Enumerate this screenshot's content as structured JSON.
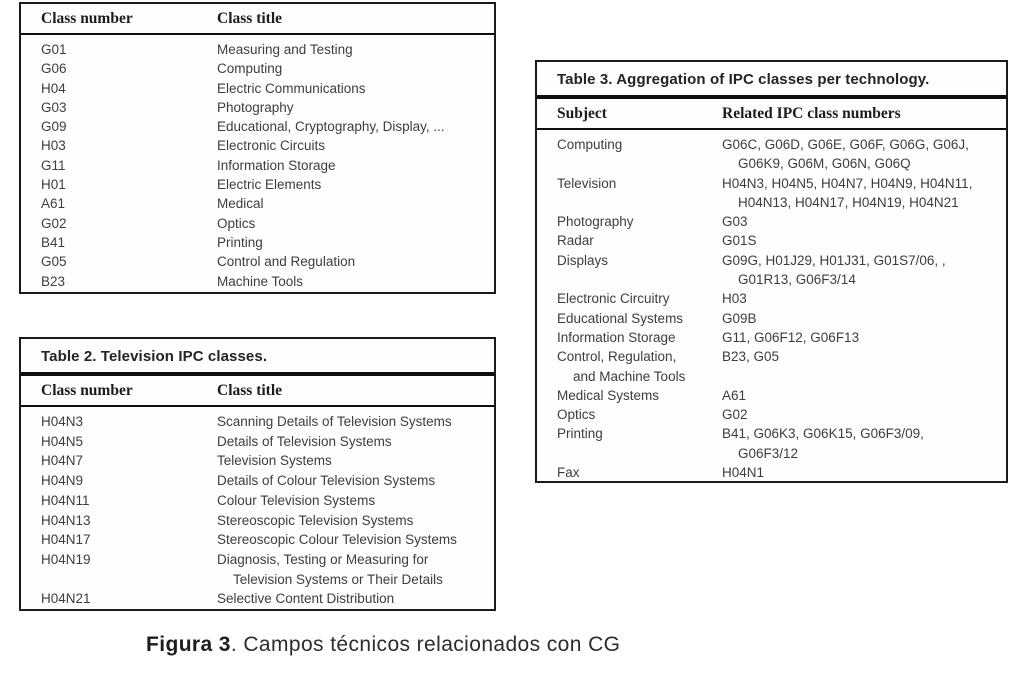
{
  "table1": {
    "headers": [
      "Class number",
      "Class title"
    ],
    "rows": [
      {
        "c1": [
          "G01"
        ],
        "c2": [
          "Measuring and Testing"
        ]
      },
      {
        "c1": [
          "G06"
        ],
        "c2": [
          "Computing"
        ]
      },
      {
        "c1": [
          "H04"
        ],
        "c2": [
          "Electric Communications"
        ]
      },
      {
        "c1": [
          "G03"
        ],
        "c2": [
          "Photography"
        ]
      },
      {
        "c1": [
          "G09"
        ],
        "c2": [
          "Educational, Cryptography, Display, ..."
        ]
      },
      {
        "c1": [
          "H03"
        ],
        "c2": [
          "Electronic Circuits"
        ]
      },
      {
        "c1": [
          "G11"
        ],
        "c2": [
          "Information Storage"
        ]
      },
      {
        "c1": [
          "H01"
        ],
        "c2": [
          "Electric Elements"
        ]
      },
      {
        "c1": [
          "A61"
        ],
        "c2": [
          "Medical"
        ]
      },
      {
        "c1": [
          "G02"
        ],
        "c2": [
          "Optics"
        ]
      },
      {
        "c1": [
          "B41"
        ],
        "c2": [
          "Printing"
        ]
      },
      {
        "c1": [
          "G05"
        ],
        "c2": [
          "Control and Regulation"
        ]
      },
      {
        "c1": [
          "B23"
        ],
        "c2": [
          "Machine Tools"
        ]
      }
    ]
  },
  "table2": {
    "title": "Table 2. Television IPC classes.",
    "headers": [
      "Class number",
      "Class title"
    ],
    "rows": [
      {
        "c1": [
          "H04N3"
        ],
        "c2": [
          "Scanning Details of Television Systems"
        ]
      },
      {
        "c1": [
          "H04N5"
        ],
        "c2": [
          "Details of Television Systems"
        ]
      },
      {
        "c1": [
          "H04N7"
        ],
        "c2": [
          "Television Systems"
        ]
      },
      {
        "c1": [
          "H04N9"
        ],
        "c2": [
          "Details of Colour Television Systems"
        ]
      },
      {
        "c1": [
          "H04N11"
        ],
        "c2": [
          "Colour Television Systems"
        ]
      },
      {
        "c1": [
          "H04N13"
        ],
        "c2": [
          "Stereoscopic Television Systems"
        ]
      },
      {
        "c1": [
          "H04N17"
        ],
        "c2": [
          "Stereoscopic Colour Television Systems"
        ]
      },
      {
        "c1": [
          "H04N19"
        ],
        "c2": [
          "Diagnosis, Testing or Measuring for",
          "Television Systems or Their Details"
        ]
      },
      {
        "c1": [
          "H04N21"
        ],
        "c2": [
          "Selective Content Distribution"
        ]
      }
    ]
  },
  "table3": {
    "title": "Table 3. Aggregation of IPC classes per technology.",
    "headers": [
      "Subject",
      "Related IPC class numbers"
    ],
    "rows": [
      {
        "c1": [
          "Computing"
        ],
        "c2": [
          "G06C, G06D, G06E, G06F, G06G, G06J,",
          "G06K9, G06M, G06N, G06Q"
        ]
      },
      {
        "c1": [
          "Television"
        ],
        "c2": [
          "H04N3, H04N5, H04N7, H04N9, H04N11,",
          "H04N13, H04N17, H04N19, H04N21"
        ]
      },
      {
        "c1": [
          "Photography"
        ],
        "c2": [
          "G03"
        ]
      },
      {
        "c1": [
          "Radar"
        ],
        "c2": [
          "G01S"
        ]
      },
      {
        "c1": [
          "Displays"
        ],
        "c2": [
          "G09G, H01J29, H01J31, G01S7/06, ,",
          "G01R13, G06F3/14"
        ]
      },
      {
        "c1": [
          "Electronic Circuitry"
        ],
        "c2": [
          "H03"
        ]
      },
      {
        "c1": [
          "Educational Systems"
        ],
        "c2": [
          "G09B"
        ]
      },
      {
        "c1": [
          "Information Storage"
        ],
        "c2": [
          "G11, G06F12, G06F13"
        ]
      },
      {
        "c1": [
          "Control, Regulation,",
          "and Machine Tools"
        ],
        "c2": [
          "B23, G05"
        ]
      },
      {
        "c1": [
          "Medical Systems"
        ],
        "c2": [
          "A61"
        ]
      },
      {
        "c1": [
          "Optics"
        ],
        "c2": [
          "G02"
        ]
      },
      {
        "c1": [
          "Printing"
        ],
        "c2": [
          "B41, G06K3, G06K15, G06F3/09,",
          "G06F3/12"
        ]
      },
      {
        "c1": [
          "Fax"
        ],
        "c2": [
          "H04N1"
        ]
      }
    ]
  },
  "caption": {
    "label": "Figura 3",
    "text": ". Campos técnicos relacionados con CG"
  },
  "colors": {
    "border": "#1a1a1a",
    "heavy_rule": "#0e0e0e",
    "body_text": "#3d3d3d",
    "header_text": "#1c1c1c",
    "background": "#ffffff"
  }
}
